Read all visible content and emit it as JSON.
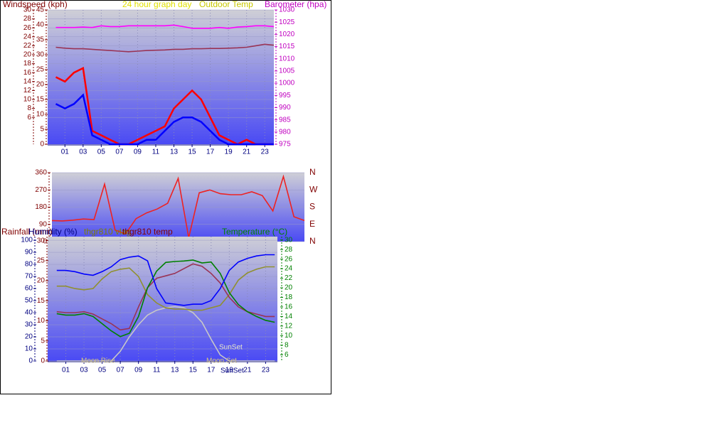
{
  "chart_data": [
    {
      "type": "line",
      "title": "24 hour graph day",
      "y_label": "Windspeed (kph)",
      "y2_label": "Barometer (hpa)",
      "x": [
        0,
        1,
        2,
        3,
        4,
        5,
        6,
        7,
        8,
        9,
        10,
        11,
        12,
        13,
        14,
        15,
        16,
        17,
        18,
        19,
        20,
        21,
        22,
        23,
        24
      ],
      "xlim": [
        -0.9,
        24
      ],
      "xticks": [
        {
          "value": 1,
          "label": "01"
        },
        {
          "value": 3,
          "label": "03"
        },
        {
          "value": 5,
          "label": "05"
        },
        {
          "value": 7,
          "label": "07"
        },
        {
          "value": 9,
          "label": "09"
        },
        {
          "value": 11,
          "label": "11"
        },
        {
          "value": 13,
          "label": "13"
        },
        {
          "value": 15,
          "label": "15"
        },
        {
          "value": 17,
          "label": "17"
        },
        {
          "value": 19,
          "label": "19"
        },
        {
          "value": 21,
          "label": "21"
        },
        {
          "value": 23,
          "label": "23"
        }
      ],
      "ylim": [
        0,
        30
      ],
      "yticks": [
        6,
        8,
        10,
        12,
        14,
        16,
        18,
        20,
        22,
        24,
        26,
        28,
        30
      ],
      "y3lim": [
        0,
        45
      ],
      "y3ticks": [
        0,
        5,
        10,
        15,
        20,
        25,
        30,
        35,
        40,
        45
      ],
      "y2lim": [
        975,
        1030
      ],
      "y2ticks": [
        975,
        980,
        985,
        990,
        995,
        1000,
        1005,
        1010,
        1015,
        1020,
        1025,
        1030
      ],
      "grid": true,
      "series": [
        {
          "color": "#ff0000",
          "values": [
            15,
            14,
            16,
            17,
            3,
            2,
            1,
            0,
            0,
            1,
            2,
            3,
            4,
            8,
            10,
            12,
            10,
            6,
            2,
            1,
            0,
            1,
            0,
            0,
            0
          ]
        },
        {
          "color": "#0000ff",
          "values": [
            9,
            8,
            9,
            11,
            2,
            1,
            0,
            0,
            0,
            0,
            1,
            1,
            3,
            5,
            6,
            6,
            5,
            3,
            1,
            0,
            0,
            0,
            0,
            0,
            0
          ]
        },
        {
          "color": "#ff00ff",
          "axis": "y2",
          "values": [
            1022.8,
            1022.8,
            1022.8,
            1023,
            1022.8,
            1023.5,
            1023.2,
            1023.2,
            1023.5,
            1023.5,
            1023.5,
            1023.5,
            1023.5,
            1023.8,
            1023.2,
            1022.5,
            1022.5,
            1022.5,
            1022.8,
            1022.5,
            1023,
            1023.2,
            1023.5,
            1023.5,
            1023.2
          ]
        },
        {
          "name": "Outdoor Temp",
          "color": "#993355",
          "axis": "y3",
          "values": [
            32.5,
            32.2,
            32,
            32,
            31.8,
            31.6,
            31.4,
            31.2,
            31,
            31.2,
            31.4,
            31.5,
            31.6,
            31.8,
            31.8,
            32,
            32,
            32.1,
            32.1,
            32.2,
            32.3,
            32.5,
            33,
            33.5,
            33.2
          ]
        }
      ]
    },
    {
      "type": "line",
      "x": [
        0,
        1,
        2,
        3,
        4,
        5,
        6,
        7,
        8,
        9,
        10,
        11,
        12,
        13,
        14,
        15,
        16,
        17,
        18,
        19,
        20,
        21,
        22,
        23,
        24
      ],
      "xlim": [
        0,
        24
      ],
      "ylim": [
        0,
        360
      ],
      "yticks": [
        0,
        90,
        180,
        270,
        360
      ],
      "direction_labels": [
        "N",
        "W",
        "S",
        "E",
        "N"
      ],
      "grid": true,
      "series": [
        {
          "color": "#ee2222",
          "values": [
            110,
            108,
            112,
            118,
            115,
            300,
            60,
            40,
            120,
            150,
            170,
            200,
            330,
            20,
            255,
            270,
            250,
            245,
            245,
            260,
            240,
            160,
            340,
            130,
            110
          ]
        }
      ]
    },
    {
      "type": "line",
      "y_label": "Humidity (%)",
      "y3_label": "Rainfall (mm)",
      "y2_label": "Temperature (°C)",
      "x": [
        0,
        1,
        2,
        3,
        4,
        5,
        6,
        7,
        8,
        9,
        10,
        11,
        12,
        13,
        14,
        15,
        16,
        17,
        18,
        19,
        20,
        21,
        22,
        23,
        24
      ],
      "xlim": [
        -1,
        24.3
      ],
      "xticks": [
        {
          "value": 1,
          "label": "01"
        },
        {
          "value": 3,
          "label": "03"
        },
        {
          "value": 5,
          "label": "05"
        },
        {
          "value": 7,
          "label": "07"
        },
        {
          "value": 9,
          "label": "09"
        },
        {
          "value": 11,
          "label": "11"
        },
        {
          "value": 13,
          "label": "13"
        },
        {
          "value": 15,
          "label": "15"
        },
        {
          "value": 17,
          "label": "17"
        },
        {
          "value": 19,
          "label": "19"
        },
        {
          "value": 21,
          "label": "21"
        },
        {
          "value": 23,
          "label": "23"
        }
      ],
      "ylim": [
        0,
        103
      ],
      "yticks": [
        0,
        10,
        20,
        30,
        40,
        50,
        60,
        70,
        80,
        90,
        100
      ],
      "y3lim": [
        0,
        31
      ],
      "y3ticks": [
        0,
        5,
        10,
        15,
        20,
        25,
        30
      ],
      "y2lim": [
        4.7,
        30.7
      ],
      "y2ticks": [
        6,
        8,
        10,
        12,
        14,
        16,
        18,
        20,
        22,
        24,
        26,
        28,
        30
      ],
      "grid": true,
      "annotations": [
        "Moon Rise",
        "SunSet",
        "Moon Set",
        "SunSet"
      ],
      "series": [
        {
          "color": "#c8c8c8",
          "values": [
            0,
            0,
            0,
            0,
            0,
            0,
            0,
            8,
            20,
            30,
            38,
            42,
            44,
            45,
            44,
            40,
            32,
            18,
            5,
            0,
            0,
            0,
            0,
            0,
            0
          ]
        },
        {
          "name": "thgr810 vlag",
          "color": "#909030",
          "values": [
            62,
            62,
            60,
            59,
            60,
            68,
            74,
            76,
            77,
            70,
            55,
            48,
            44,
            43,
            43,
            42,
            42,
            44,
            46,
            55,
            67,
            73,
            76,
            78,
            78
          ]
        },
        {
          "name": "thgr810 temp",
          "color": "#993355",
          "axis": "y2",
          "values": [
            15,
            14.8,
            14.8,
            15,
            14.5,
            13.5,
            12.5,
            11.2,
            11.5,
            16,
            20,
            22,
            22.5,
            23,
            24,
            25,
            24.5,
            23,
            21,
            18,
            16,
            15,
            14.5,
            14,
            14
          ]
        },
        {
          "color": "#008000",
          "axis": "y2",
          "values": [
            14.6,
            14.3,
            14.3,
            14.6,
            14,
            12.5,
            11,
            9.8,
            10.5,
            14,
            20,
            23.5,
            25.3,
            25.5,
            25.6,
            25.8,
            25.2,
            25.4,
            23,
            19,
            16.5,
            15,
            14,
            13.2,
            12.8
          ]
        },
        {
          "color": "#0000ff",
          "values": [
            75,
            75,
            74,
            72,
            71,
            74,
            78,
            84,
            86,
            87,
            83,
            60,
            48,
            47,
            46,
            47,
            47,
            50,
            60,
            75,
            82,
            85,
            87,
            88,
            88
          ]
        }
      ]
    }
  ]
}
